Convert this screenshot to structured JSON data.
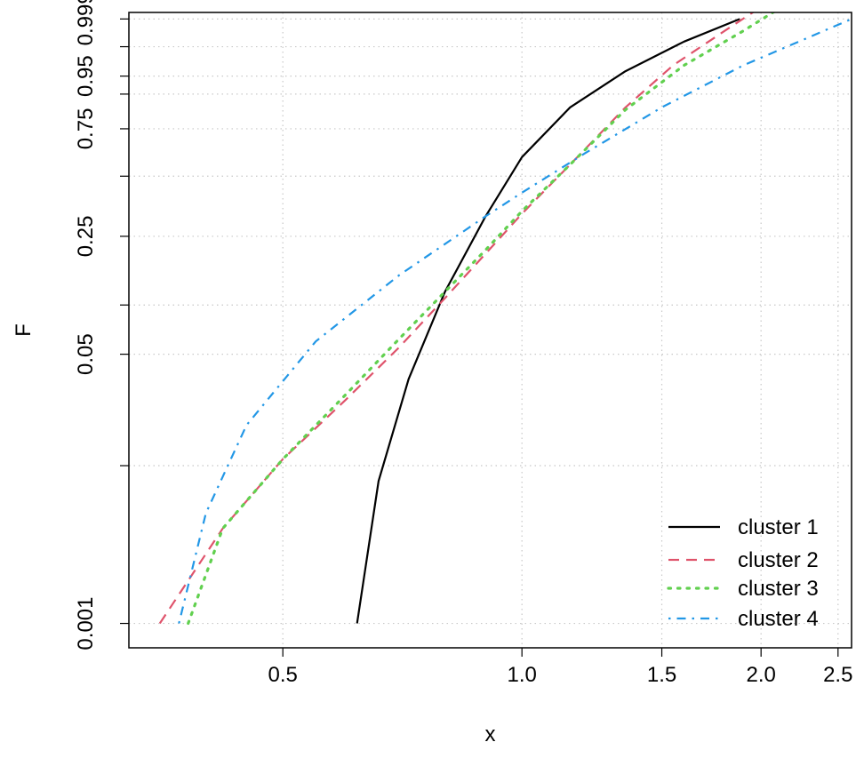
{
  "chart_data": {
    "type": "line",
    "xlabel": "x",
    "ylabel": "F",
    "x_scale": "log",
    "y_scale": "probability (Weibull: log(-log(1-F)))",
    "xlim": [
      0.32,
      2.6
    ],
    "ylim": [
      0.0007,
      0.9995
    ],
    "grid": true,
    "grid_style": "dotted",
    "x_ticks": [
      {
        "value": 0.5,
        "label": "0.5"
      },
      {
        "value": 1.0,
        "label": "1.0"
      },
      {
        "value": 1.5,
        "label": "1.5"
      },
      {
        "value": 2.0,
        "label": "2.0"
      },
      {
        "value": 2.5,
        "label": "2.5"
      }
    ],
    "y_ticks": [
      {
        "value": 0.001,
        "label": "0.001"
      },
      {
        "value": 0.01,
        "label": ""
      },
      {
        "value": 0.05,
        "label": "0.05"
      },
      {
        "value": 0.1,
        "label": ""
      },
      {
        "value": 0.25,
        "label": "0.25"
      },
      {
        "value": 0.5,
        "label": ""
      },
      {
        "value": 0.75,
        "label": "0.75"
      },
      {
        "value": 0.9,
        "label": ""
      },
      {
        "value": 0.95,
        "label": "0.95"
      },
      {
        "value": 0.99,
        "label": ""
      },
      {
        "value": 0.999,
        "label": "0.999"
      }
    ],
    "legend_position": "bottom-right",
    "series": [
      {
        "name": "cluster  1",
        "color": "#000000",
        "dash": "solid",
        "x": [
          0.62,
          0.66,
          0.72,
          0.8,
          0.9,
          1.0,
          1.15,
          1.35,
          1.6,
          1.88
        ],
        "y": [
          0.001,
          0.008,
          0.035,
          0.12,
          0.32,
          0.6,
          0.85,
          0.96,
          0.993,
          0.999
        ]
      },
      {
        "name": "cluster  2",
        "color": "#df536b",
        "dash": "dashed",
        "x": [
          0.35,
          0.42,
          0.5,
          0.6,
          0.7,
          0.8,
          0.9,
          1.0,
          1.15,
          1.35,
          1.55,
          1.8,
          2.07
        ],
        "y": [
          0.001,
          0.004,
          0.011,
          0.026,
          0.055,
          0.11,
          0.2,
          0.33,
          0.56,
          0.85,
          0.97,
          0.997,
          0.9999
        ]
      },
      {
        "name": "cluster  3",
        "color": "#61d04f",
        "dash": "dotted",
        "x": [
          0.38,
          0.42,
          0.5,
          0.6,
          0.7,
          0.8,
          0.9,
          1.0,
          1.15,
          1.35,
          1.6,
          1.9,
          2.2
        ],
        "y": [
          0.001,
          0.004,
          0.011,
          0.028,
          0.062,
          0.12,
          0.21,
          0.34,
          0.56,
          0.84,
          0.97,
          0.997,
          0.9999
        ]
      },
      {
        "name": "cluster  4",
        "color": "#2297e6",
        "dash": "dotdash",
        "x": [
          0.37,
          0.4,
          0.45,
          0.55,
          0.7,
          0.9,
          1.0,
          1.2,
          1.5,
          1.9,
          2.3,
          2.6
        ],
        "y": [
          0.001,
          0.005,
          0.018,
          0.06,
          0.15,
          0.32,
          0.42,
          0.62,
          0.85,
          0.97,
          0.995,
          0.999
        ]
      }
    ]
  }
}
